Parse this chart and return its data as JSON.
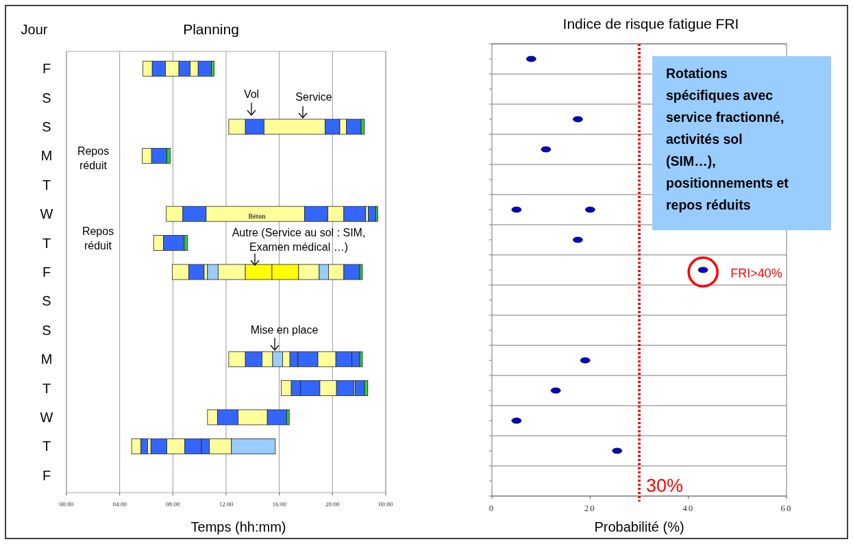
{
  "chart_data": [
    {
      "type": "bar",
      "orientation": "horizontal",
      "title": "Planning",
      "ylabel": "Jour",
      "xlabel": "Temps (hh:mm)",
      "categories": [
        "F",
        "S",
        "S",
        "M",
        "T",
        "W",
        "T",
        "F",
        "S",
        "S",
        "M",
        "T",
        "W",
        "T",
        "F"
      ],
      "xlim": [
        0,
        24
      ],
      "xticks": [
        {
          "value": 0,
          "label": "00:00"
        },
        {
          "value": 4,
          "label": "04:00"
        },
        {
          "value": 8,
          "label": "08:00"
        },
        {
          "value": 12,
          "label": "12:00"
        },
        {
          "value": 16,
          "label": "16:00"
        },
        {
          "value": 20,
          "label": "20:00"
        },
        {
          "value": 24,
          "label": "00:00"
        }
      ],
      "grid": "x",
      "annotations": [
        "Vol",
        "Service",
        "Repos réduit",
        "Béton",
        "Repos réduit",
        "Autre (Service au sol : SIM, Examen médical …)",
        "Mise en place"
      ],
      "series": [
        {
          "base": [
            5.75,
            null,
            12.2,
            5.7,
            null,
            7.5,
            6.55,
            7.95,
            null,
            null,
            12.2,
            16.15,
            10.6,
            4.9,
            null
          ],
          "values": [
            0.7,
            null,
            1.25,
            0.7,
            null,
            1.25,
            0.75,
            1.25,
            null,
            null,
            1.25,
            0.75,
            0.75,
            0.7,
            null
          ],
          "colors": [
            "#ffff99",
            null,
            "#ffff99",
            "#ffff99",
            null,
            "#ffff99",
            "#ffff99",
            "#ffff99",
            null,
            null,
            "#ffff99",
            "#ffff99",
            "#ffff99",
            "#ffff99",
            null
          ]
        },
        {
          "base": [
            6.45,
            null,
            13.45,
            6.4,
            null,
            8.75,
            7.3,
            9.2,
            null,
            null,
            13.45,
            16.9,
            11.35,
            5.6,
            null
          ],
          "values": [
            1.0,
            null,
            1.4,
            1.15,
            null,
            1.75,
            1.55,
            1.15,
            null,
            null,
            1.25,
            0.7,
            1.55,
            0.5,
            null
          ],
          "colors": [
            "#3366ff",
            null,
            "#3366ff",
            "#3366ff",
            null,
            "#3366ff",
            "#3366ff",
            "#3366ff",
            null,
            null,
            "#3366ff",
            "#3366ff",
            "#3366ff",
            "#3366ff",
            null
          ]
        },
        {
          "base": [
            7.45,
            null,
            14.85,
            7.55,
            null,
            10.5,
            8.85,
            10.35,
            null,
            null,
            14.7,
            17.6,
            12.9,
            6.1,
            null
          ],
          "values": [
            1.0,
            null,
            4.6,
            0.25,
            null,
            7.4,
            0.25,
            0.25,
            null,
            null,
            0.8,
            1.45,
            2.2,
            0.25,
            null
          ],
          "colors": [
            "#ffff99",
            null,
            "#ffff99",
            "#33cc33",
            null,
            "#ffff99",
            "#33cc33",
            "#ffff99",
            null,
            null,
            "#ffff99",
            "#3366ff",
            "#ffff99",
            "#ffff99",
            null
          ]
        },
        {
          "base": [
            8.45,
            null,
            19.45,
            null,
            null,
            17.9,
            null,
            10.6,
            null,
            null,
            15.5,
            19.05,
            15.1,
            6.35,
            null
          ],
          "values": [
            0.85,
            null,
            1.1,
            null,
            null,
            1.75,
            null,
            0.8,
            null,
            null,
            0.75,
            1.25,
            1.45,
            1.2,
            null
          ],
          "colors": [
            "#3366ff",
            null,
            "#3366ff",
            null,
            null,
            "#3366ff",
            null,
            "#99ccff",
            null,
            null,
            "#99ccff",
            "#ffff99",
            "#3366ff",
            "#3366ff",
            null
          ]
        },
        {
          "base": [
            9.3,
            null,
            20.55,
            null,
            null,
            19.65,
            null,
            11.4,
            null,
            null,
            16.25,
            20.3,
            16.55,
            7.55,
            null
          ],
          "values": [
            0.6,
            null,
            0.5,
            null,
            null,
            1.2,
            null,
            2.05,
            null,
            null,
            0.55,
            1.3,
            0.2,
            1.35,
            null
          ],
          "colors": [
            "#ffff99",
            null,
            "#ffff99",
            null,
            null,
            "#ffff99",
            null,
            "#ffff99",
            null,
            null,
            "#ffff99",
            "#3366ff",
            "#33cc33",
            "#ffff99",
            null
          ]
        },
        {
          "base": [
            9.9,
            null,
            21.05,
            null,
            null,
            20.85,
            null,
            13.45,
            null,
            null,
            16.8,
            21.6,
            null,
            8.9,
            null
          ],
          "values": [
            1.0,
            null,
            1.1,
            null,
            null,
            1.65,
            null,
            2.0,
            null,
            null,
            0.6,
            0.1,
            null,
            1.25,
            null
          ],
          "colors": [
            "#3366ff",
            null,
            "#3366ff",
            null,
            null,
            "#3366ff",
            null,
            "#ffff00",
            null,
            null,
            "#3366ff",
            "#ffff99",
            null,
            "#3366ff",
            null
          ]
        },
        {
          "base": [
            10.9,
            null,
            22.15,
            null,
            null,
            22.5,
            null,
            15.45,
            null,
            null,
            17.4,
            21.7,
            null,
            10.15,
            null
          ],
          "values": [
            0.2,
            null,
            0.25,
            null,
            null,
            0.2,
            null,
            2.0,
            null,
            null,
            1.5,
            0.7,
            null,
            0.6,
            null
          ],
          "colors": [
            "#33cc33",
            null,
            "#33cc33",
            null,
            null,
            "#ffff99",
            null,
            "#ffff00",
            null,
            null,
            "#3366ff",
            "#3366ff",
            null,
            "#3366ff",
            null
          ]
        },
        {
          "base": [
            null,
            null,
            null,
            null,
            null,
            22.7,
            null,
            17.45,
            null,
            null,
            18.9,
            22.4,
            null,
            10.75,
            null
          ],
          "values": [
            null,
            null,
            null,
            null,
            null,
            0.55,
            null,
            1.55,
            null,
            null,
            1.35,
            0.25,
            null,
            1.65,
            null
          ],
          "colors": [
            null,
            null,
            null,
            null,
            null,
            "#3366ff",
            null,
            "#ffff99",
            null,
            null,
            "#ffff99",
            "#33cc33",
            null,
            "#ffff99",
            null
          ]
        },
        {
          "base": [
            null,
            null,
            null,
            null,
            null,
            23.25,
            null,
            19.0,
            null,
            null,
            20.25,
            null,
            null,
            12.4,
            null
          ],
          "values": [
            null,
            null,
            null,
            null,
            null,
            0.15,
            null,
            0.7,
            null,
            null,
            1.2,
            null,
            null,
            3.3,
            null
          ],
          "colors": [
            null,
            null,
            null,
            null,
            null,
            "#33cc33",
            null,
            "#99ccff",
            null,
            null,
            "#3366ff",
            null,
            null,
            "#99ccff",
            null
          ]
        },
        {
          "base": [
            null,
            null,
            null,
            null,
            null,
            null,
            null,
            19.7,
            null,
            null,
            21.45,
            null,
            null,
            null,
            null
          ],
          "values": [
            null,
            null,
            null,
            null,
            null,
            null,
            null,
            1.15,
            null,
            null,
            0.6,
            null,
            null,
            null,
            null
          ],
          "colors": [
            null,
            null,
            null,
            null,
            null,
            null,
            null,
            "#ffff99",
            null,
            null,
            "#3366ff",
            null,
            null,
            null,
            null
          ]
        },
        {
          "base": [
            null,
            null,
            null,
            null,
            null,
            null,
            null,
            20.85,
            null,
            null,
            22.05,
            null,
            null,
            null,
            null
          ],
          "values": [
            null,
            null,
            null,
            null,
            null,
            null,
            null,
            1.2,
            null,
            null,
            0.2,
            null,
            null,
            null,
            null
          ],
          "colors": [
            null,
            null,
            null,
            null,
            null,
            null,
            null,
            "#3366ff",
            null,
            null,
            "#33cc33",
            null,
            null,
            null,
            null
          ]
        },
        {
          "base": [
            null,
            null,
            null,
            null,
            null,
            null,
            null,
            22.05,
            null,
            null,
            null,
            null,
            null,
            null,
            null
          ],
          "values": [
            null,
            null,
            null,
            null,
            null,
            null,
            null,
            0.2,
            null,
            null,
            null,
            null,
            null,
            null,
            null
          ],
          "colors": [
            null,
            null,
            null,
            null,
            null,
            null,
            null,
            "#33cc33",
            null,
            null,
            null,
            null,
            null,
            null,
            null
          ]
        }
      ]
    },
    {
      "type": "scatter",
      "orientation": "horizontal",
      "title": "Indice de risque fatigue FRI",
      "xlabel": "Probabilité (%)",
      "categories": [
        null,
        null,
        null,
        null,
        null,
        null,
        null,
        null,
        null,
        null,
        null,
        null,
        null,
        null,
        null
      ],
      "xlim": [
        0,
        60
      ],
      "xticks": [
        0,
        20,
        40,
        60
      ],
      "tick_labels": "x",
      "grid": "y",
      "marker": "circle",
      "ref_lines": [
        {
          "axis": "x",
          "value": 30,
          "label": "30%",
          "color": "#ff0000",
          "line_style": "dotted"
        }
      ],
      "annotations": [
        "Rotations spécifiques avec service fractionné, activités sol (SIM…), positionnements et repos réduits",
        {
          "text": "FRI>40%",
          "x": 43
        }
      ],
      "series": [
        {
          "color": "#0000cc",
          "values": [
            8,
            null,
            17.5,
            11,
            null,
            5,
            17.5,
            43,
            null,
            null,
            19,
            13,
            5,
            25.5,
            null
          ]
        },
        {
          "color": "#0000cc",
          "values": [
            null,
            null,
            null,
            null,
            null,
            20,
            null,
            null,
            null,
            null,
            null,
            null,
            null,
            null,
            null
          ]
        }
      ]
    }
  ]
}
